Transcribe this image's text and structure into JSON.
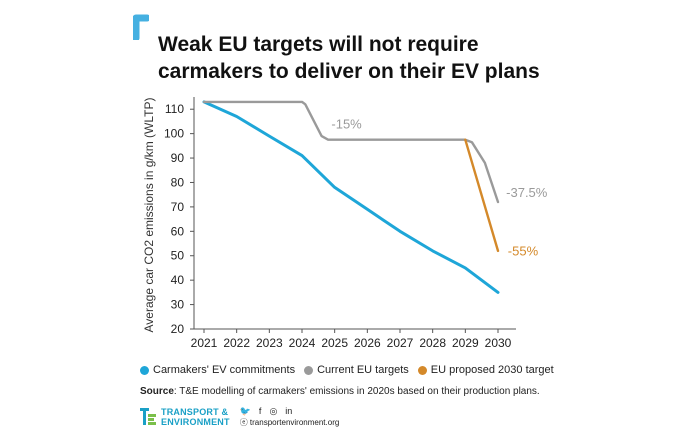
{
  "header": {
    "title": "Weak EU targets will not require carmakers to deliver on their EV plans"
  },
  "colors": {
    "accent": "#45b0e1",
    "commitments": "#1ea6d8",
    "current": "#9a9a9a",
    "proposed": "#d4892a"
  },
  "chart_data": {
    "type": "line",
    "x": [
      2021,
      2022,
      2023,
      2024,
      2025,
      2026,
      2027,
      2028,
      2029,
      2030
    ],
    "ylabel": "Average car CO2 emissions in g/km (WLTP)",
    "xlabel": "",
    "ylim": [
      20,
      115
    ],
    "yticks": [
      20,
      30,
      40,
      50,
      60,
      70,
      80,
      90,
      100,
      110
    ],
    "grid": false,
    "legend_position": "bottom",
    "series": [
      {
        "name": "Carmakers' EV commitments",
        "color": "#1ea6d8",
        "points": [
          [
            2021,
            113
          ],
          [
            2022,
            107
          ],
          [
            2023,
            99
          ],
          [
            2024,
            91
          ],
          [
            2025,
            78
          ],
          [
            2026,
            69
          ],
          [
            2027,
            60
          ],
          [
            2028,
            52
          ],
          [
            2029,
            45
          ],
          [
            2030,
            35
          ]
        ]
      },
      {
        "name": "Current EU targets",
        "color": "#9a9a9a",
        "points": [
          [
            2021,
            113
          ],
          [
            2024,
            113
          ],
          [
            2024.1,
            112
          ],
          [
            2024.6,
            99
          ],
          [
            2024.8,
            97.5
          ],
          [
            2029,
            97.5
          ],
          [
            2029.2,
            96.5
          ],
          [
            2029.6,
            88
          ],
          [
            2030,
            72
          ]
        ]
      },
      {
        "name": "EU proposed 2030 target",
        "color": "#d4892a",
        "points": [
          [
            2029,
            97.5
          ],
          [
            2030,
            52
          ]
        ]
      }
    ],
    "annotations": [
      {
        "text": "-15%",
        "x": 2024.9,
        "y": 102,
        "color": "#9a9a9a"
      },
      {
        "text": "-37.5%",
        "x": 2030.25,
        "y": 74,
        "color": "#9a9a9a"
      },
      {
        "text": "-55%",
        "x": 2030.3,
        "y": 50,
        "color": "#d4892a"
      }
    ]
  },
  "legend": {
    "items": [
      {
        "label": "Carmakers' EV commitments",
        "color": "#1ea6d8"
      },
      {
        "label": "Current EU targets",
        "color": "#9a9a9a"
      },
      {
        "label": "EU proposed 2030 target",
        "color": "#d4892a"
      }
    ]
  },
  "source": {
    "label": "Source",
    "text": ": T&E modelling of carmakers' emissions in 2020s based on their production plans."
  },
  "footer": {
    "brand_line1": "TRANSPORT &",
    "brand_line2": "ENVIRONMENT",
    "social_icons": [
      "twitter-icon",
      "facebook-icon",
      "instagram-icon",
      "linkedin-icon"
    ],
    "social_glyphs": [
      "🐦",
      "f",
      "◎",
      "in"
    ],
    "website": "ⓔ transportenvironment.org"
  }
}
